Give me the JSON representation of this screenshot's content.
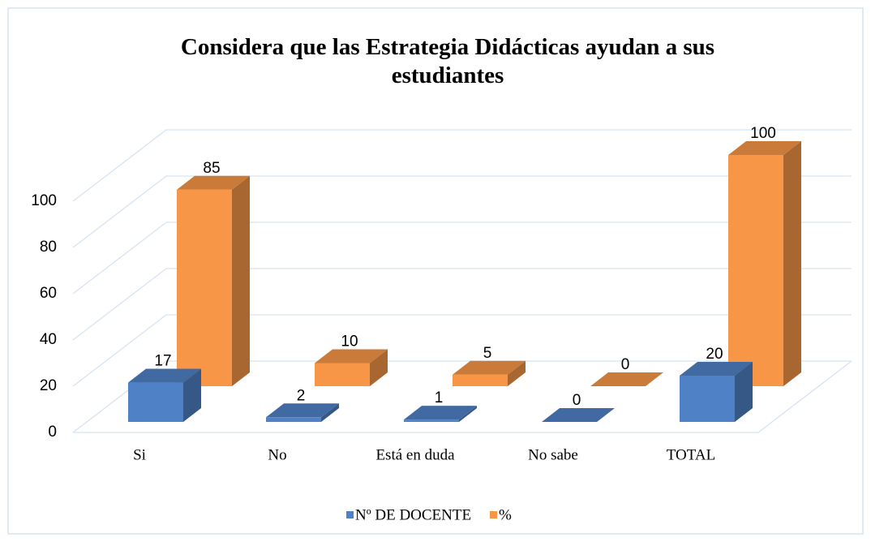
{
  "chart_data": {
    "type": "bar3d",
    "title": "Considera que las Estrategia Didácticas ayudan a sus estudiantes",
    "categories": [
      "Si",
      "No",
      "Está en duda",
      "No sabe",
      "TOTAL"
    ],
    "series": [
      {
        "name": "Nº DE DOCENTE",
        "color": "#4f81c7",
        "values": [
          17,
          2,
          1,
          0,
          20
        ]
      },
      {
        "name": "%",
        "color": "#f79646",
        "values": [
          85,
          10,
          5,
          0,
          100
        ]
      }
    ],
    "ylim": [
      0,
      100
    ],
    "yticks": [
      0,
      20,
      40,
      60,
      80,
      100
    ],
    "grid": true,
    "legend": "bottom"
  }
}
